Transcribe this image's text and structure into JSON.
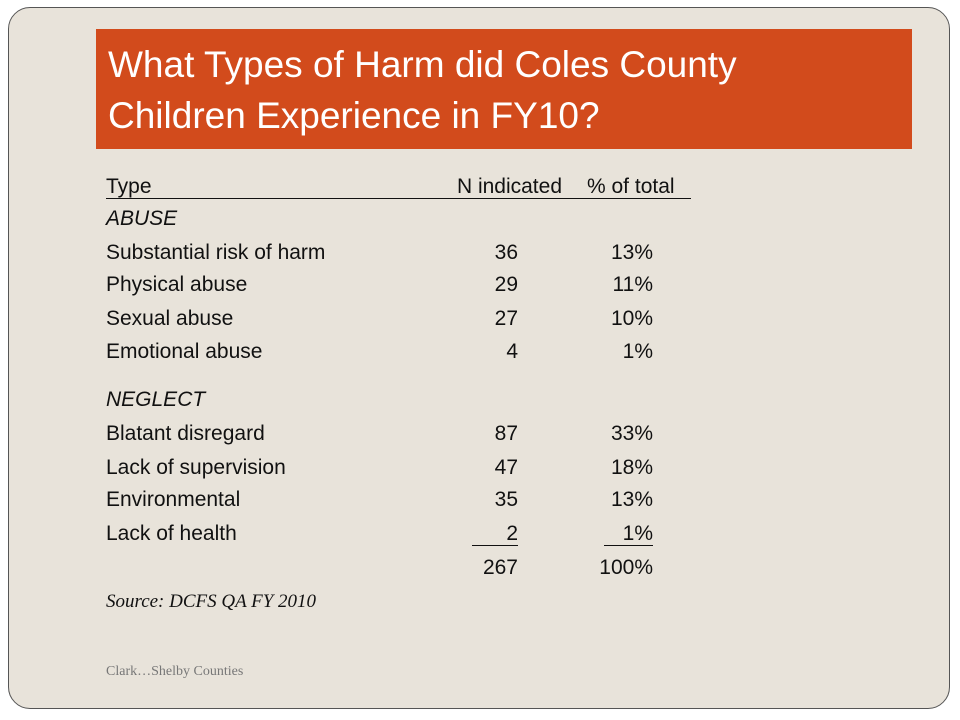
{
  "title": {
    "line1": "What Types of Harm did Coles County",
    "line2": "Children Experience in FY10?"
  },
  "table": {
    "headers": {
      "type": "Type",
      "n": "N indicated",
      "pct": "% of total"
    },
    "abuse_heading": "ABUSE",
    "abuse_rows": [
      {
        "label": "Substantial risk of harm",
        "n": "36",
        "pct": "13%"
      },
      {
        "label": "Physical abuse",
        "n": "29",
        "pct": "11%"
      },
      {
        "label": "Sexual abuse",
        "n": "27",
        "pct": "10%"
      },
      {
        "label": "Emotional abuse",
        "n": "4",
        "pct": "1%"
      }
    ],
    "neglect_heading": "NEGLECT",
    "neglect_rows": [
      {
        "label": "Blatant disregard",
        "n": "87",
        "pct": "33%"
      },
      {
        "label": "Lack of supervision",
        "n": "47",
        "pct": "18%"
      },
      {
        "label": "Environmental",
        "n": "35",
        "pct": "13%"
      },
      {
        "label": "Lack of health",
        "n": "2",
        "pct": "1%"
      }
    ],
    "total": {
      "n": "267",
      "pct": "100%"
    }
  },
  "source": "Source: DCFS QA FY 2010",
  "footer": "Clark…Shelby Counties"
}
